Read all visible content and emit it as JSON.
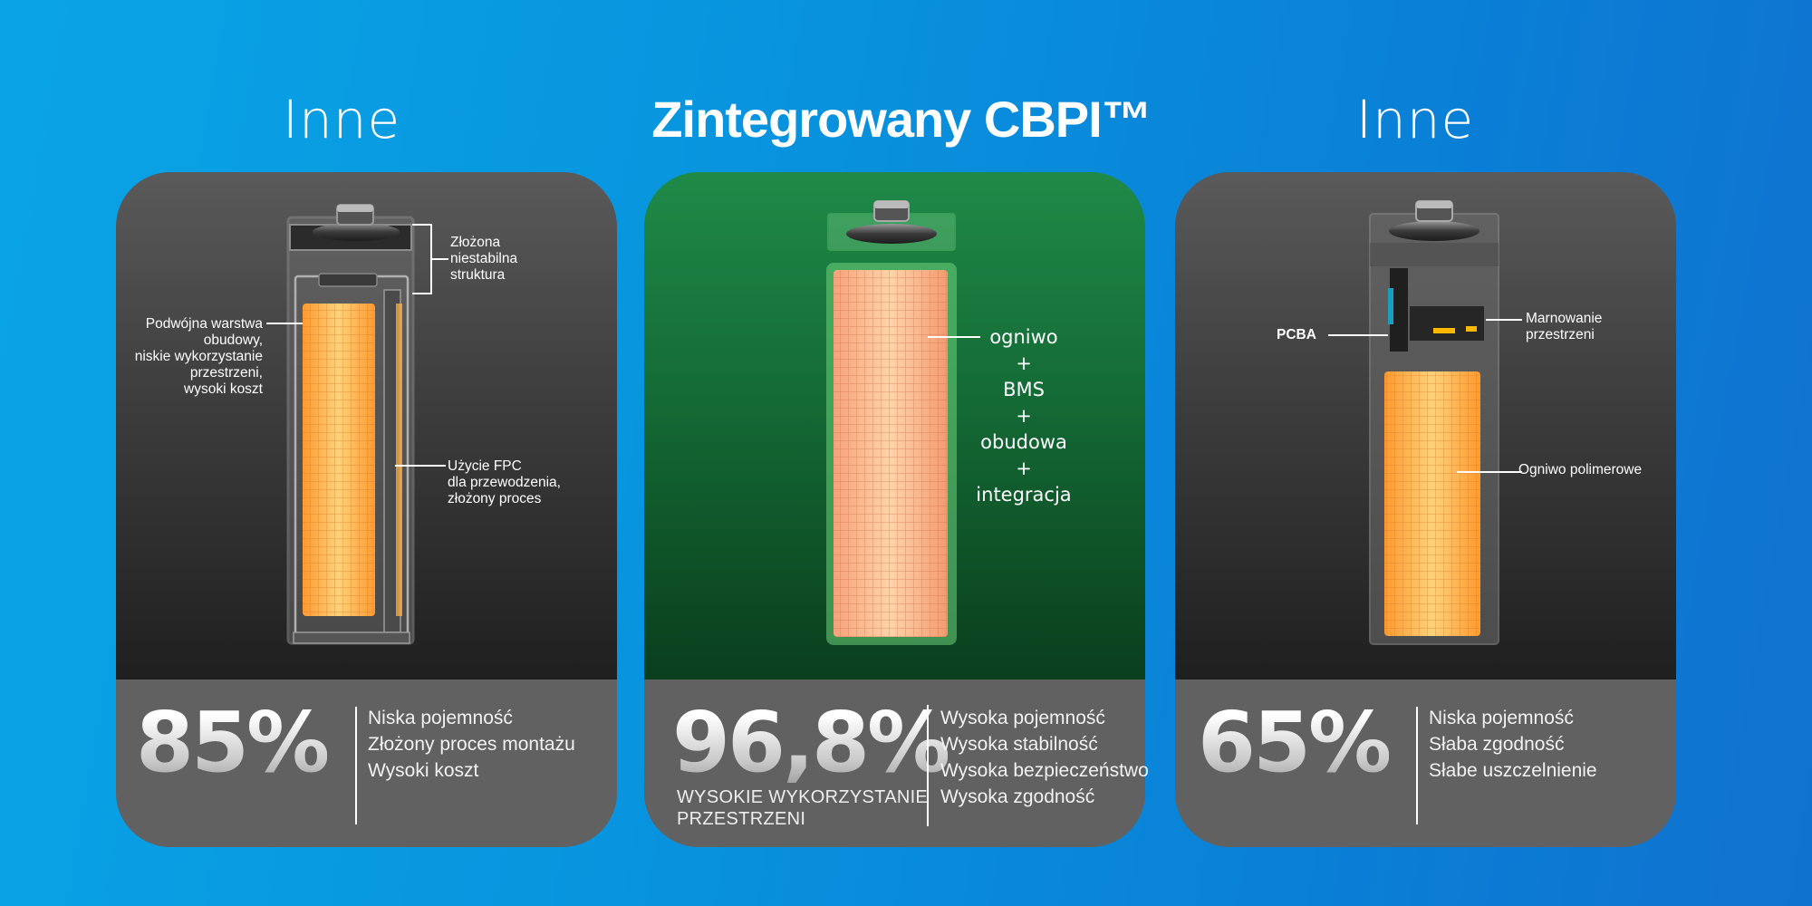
{
  "panels": {
    "left": {
      "heading": "Inne",
      "percent": "85%",
      "features": [
        "Niska pojemność",
        "Złożony proces montażu",
        "Wysoki koszt"
      ],
      "annotations": {
        "structure": [
          "Złożona",
          "niestabilna",
          "struktura"
        ],
        "double_layer": [
          "Podwójna warstwa",
          "obudowy,",
          "niskie wykorzystanie",
          "przestrzeni,",
          "wysoki koszt"
        ],
        "fpc": [
          "Użycie FPC",
          "dla przewodzenia,",
          "złożony proces"
        ]
      }
    },
    "center": {
      "heading": "Zintegrowany CBPI™",
      "percent": "96,8%",
      "subtitle": [
        "WYSOKIE WYKORZYSTANIE",
        "PRZESTRZENI"
      ],
      "features": [
        "Wysoka pojemność",
        "Wysoka stabilność",
        "Wysoka bezpieczeństwo",
        "Wysoka zgodność"
      ],
      "stack": [
        "ogniwo",
        "+",
        "BMS",
        "+",
        "obudowa",
        "+",
        "integracja"
      ]
    },
    "right": {
      "heading": "Inne",
      "percent": "65%",
      "features": [
        "Niska pojemność",
        "Słaba zgodność",
        "Słabe uszczelnienie"
      ],
      "annotations": {
        "pcba": "PCBA",
        "waste": [
          "Marnowanie",
          "przestrzeni"
        ],
        "polymer": "Ogniwo polimerowe"
      }
    }
  },
  "colors": {
    "background": "#0a96df",
    "gray_card": "#5a5a5a",
    "green_card": "#1f8a48",
    "cell_core": "#ffb347",
    "bottom_band": "#616161"
  }
}
